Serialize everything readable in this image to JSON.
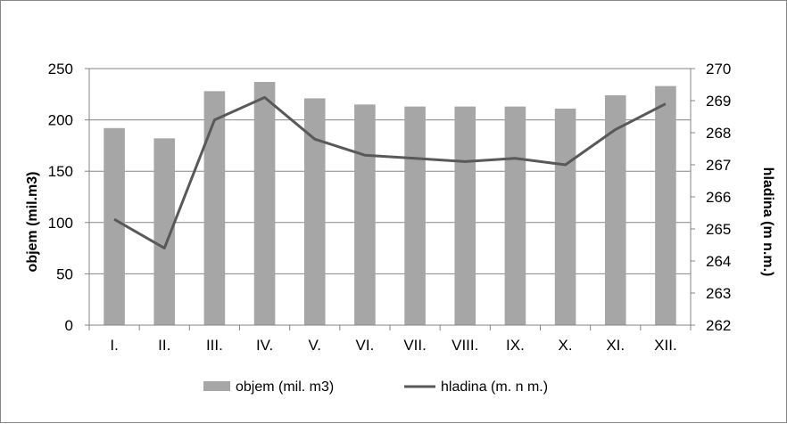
{
  "chart_data": {
    "type": "bar+line",
    "categories": [
      "I.",
      "II.",
      "III.",
      "IV.",
      "V.",
      "VI.",
      "VII.",
      "VIII.",
      "IX.",
      "X.",
      "XI.",
      "XII."
    ],
    "series": [
      {
        "name": "objem (mil. m3)",
        "type": "bar",
        "axis": "left",
        "color": "#a6a6a6",
        "values": [
          192,
          182,
          228,
          237,
          221,
          215,
          213,
          213,
          213,
          211,
          224,
          233
        ]
      },
      {
        "name": "hladina (m. n m.)",
        "type": "line",
        "axis": "right",
        "color": "#595959",
        "values": [
          265.3,
          264.4,
          268.4,
          269.1,
          267.8,
          267.3,
          267.2,
          267.1,
          267.2,
          267.0,
          268.1,
          268.9
        ]
      }
    ],
    "ylabel": "objem (mil.m3)",
    "ylabel_right": "hladina (m n.m.)",
    "ylim": [
      0,
      250
    ],
    "yticks": [
      0,
      50,
      100,
      150,
      200,
      250
    ],
    "ylim_right": [
      262,
      270
    ],
    "yticks_right": [
      262,
      263,
      264,
      265,
      266,
      267,
      268,
      269,
      270
    ],
    "grid": true,
    "legend_position": "bottom"
  }
}
